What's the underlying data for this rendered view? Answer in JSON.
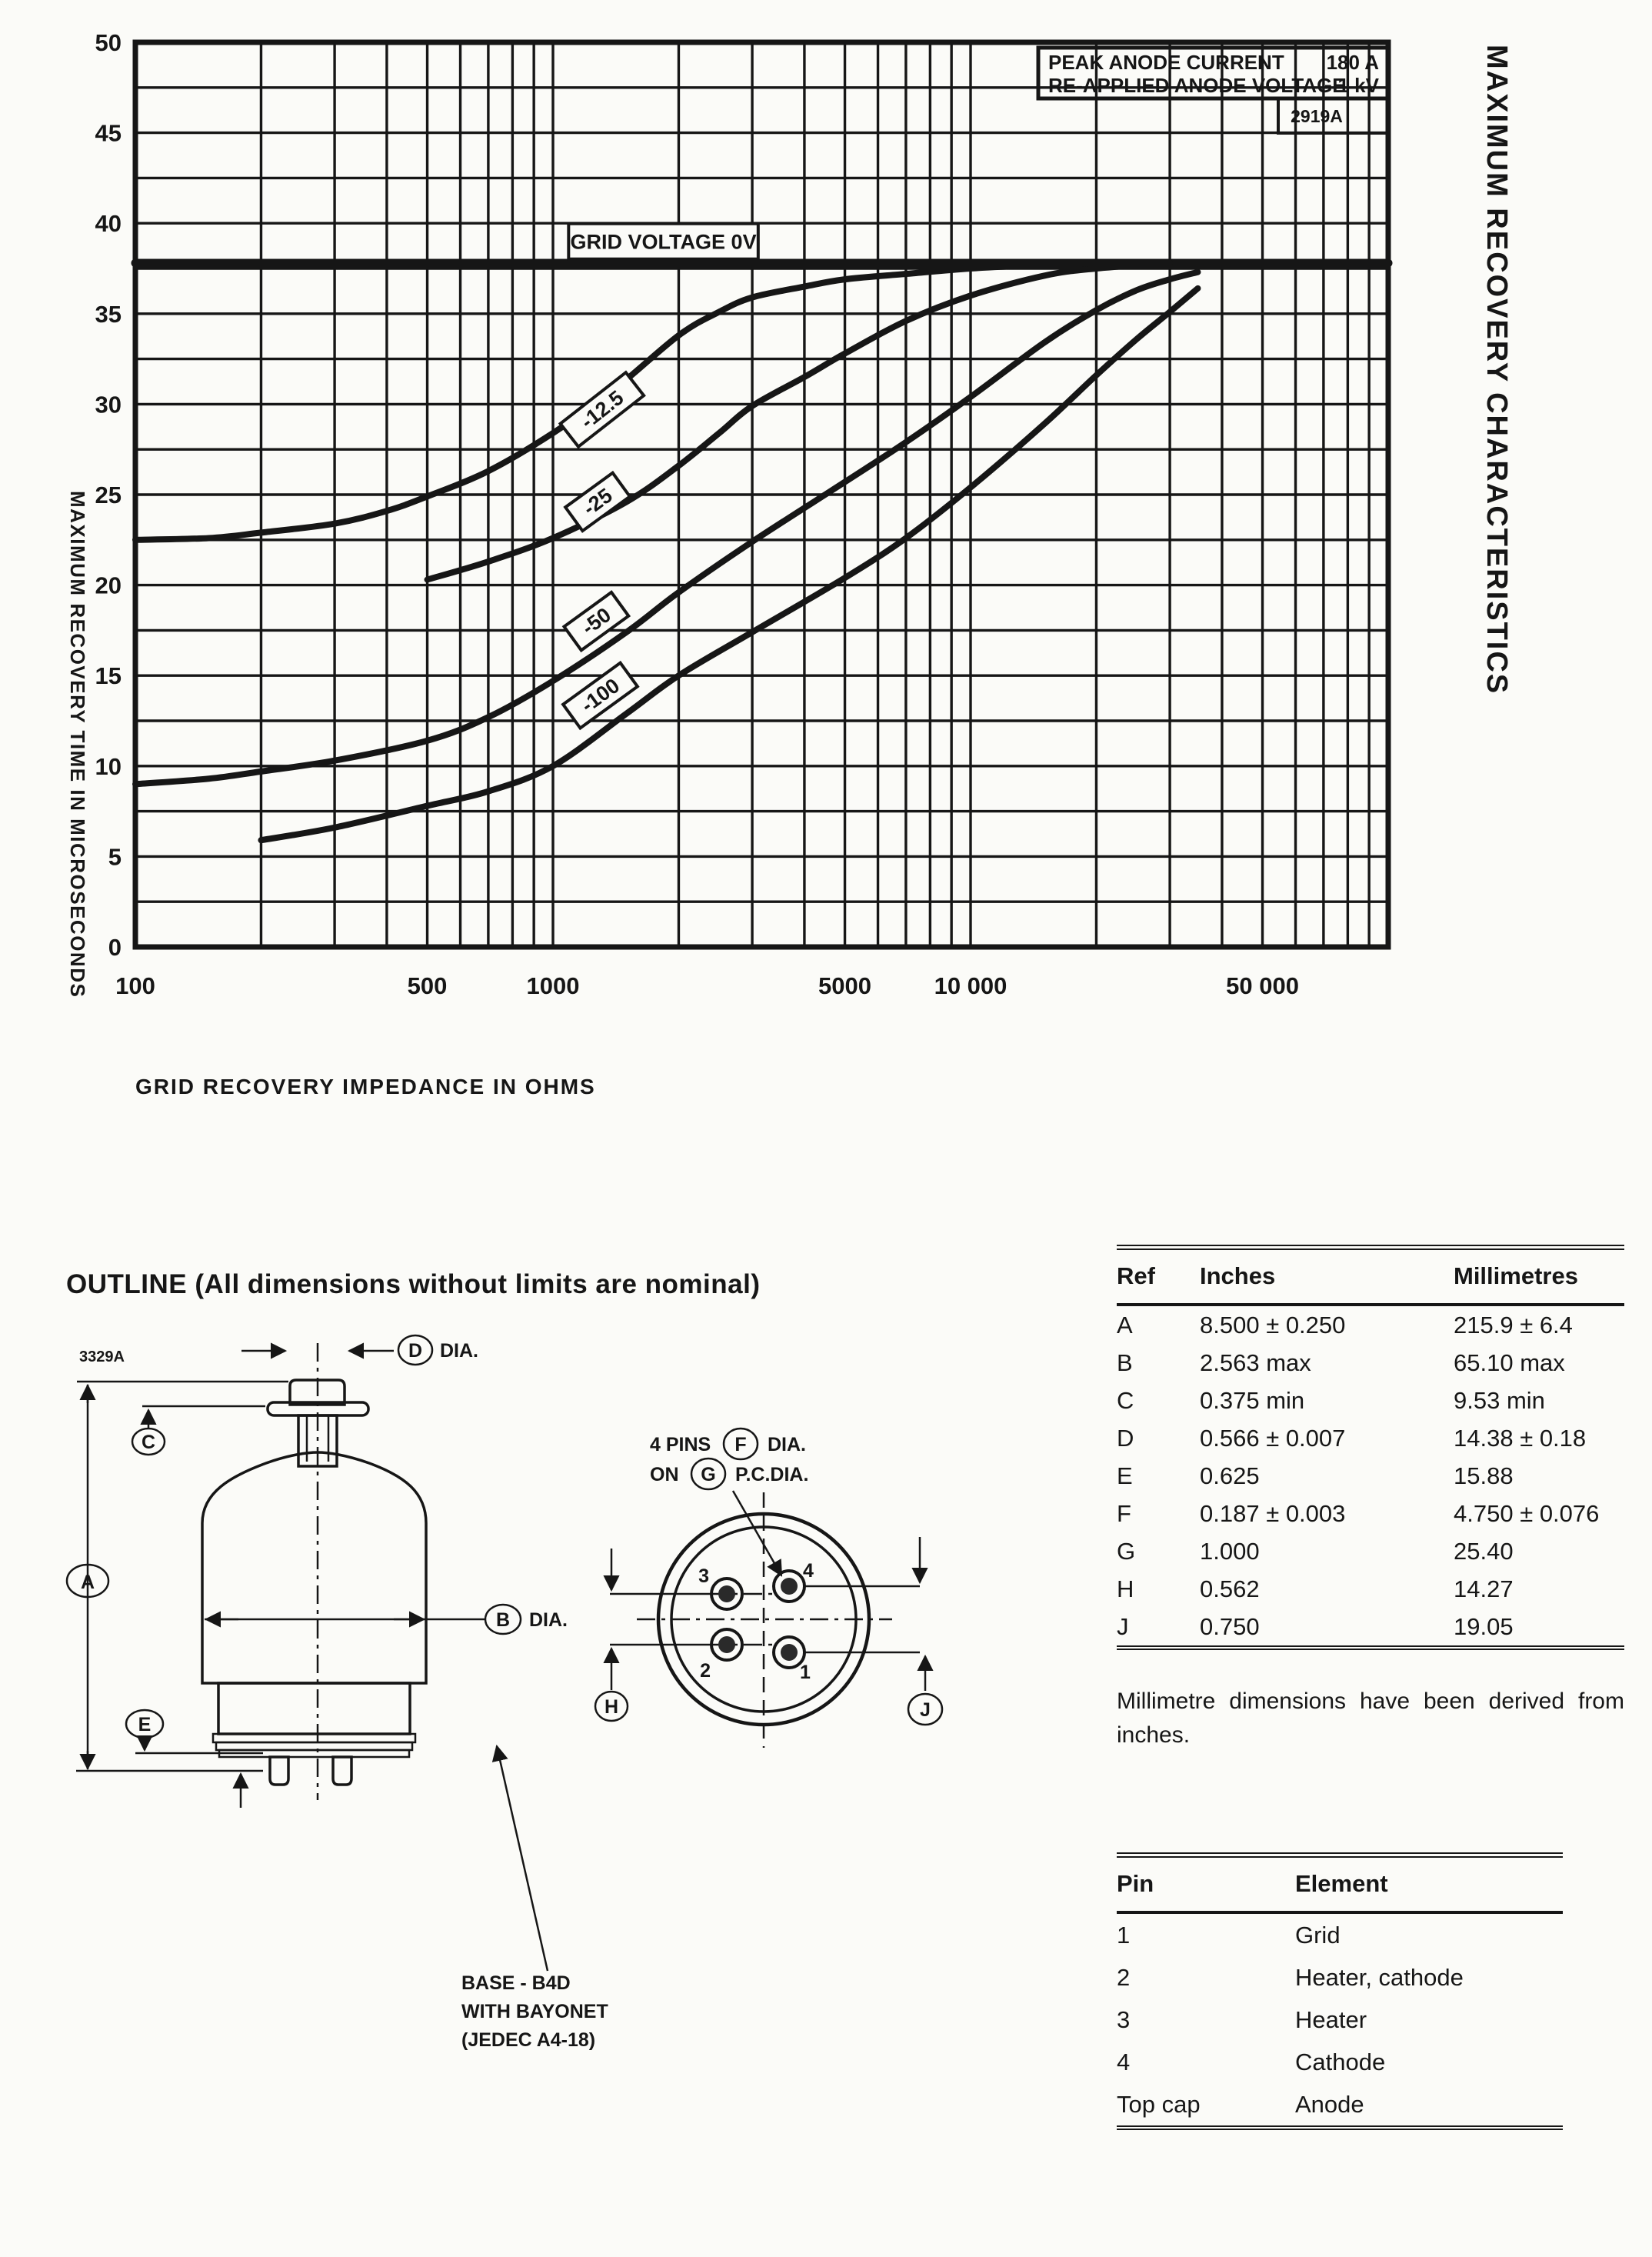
{
  "chart_data": {
    "type": "line",
    "title": "MAXIMUM RECOVERY CHARACTERISTICS",
    "xlabel": "GRID RECOVERY IMPEDANCE IN OHMS",
    "ylabel": "MAXIMUM RECOVERY TIME IN MICROSECONDS",
    "x_scale": "log",
    "xlim": [
      100,
      100000
    ],
    "ylim": [
      0,
      50
    ],
    "y_tick_step": 5,
    "y_grid_step": 2.5,
    "grid": "on",
    "x_ticks": [
      {
        "value": 100,
        "label": "100"
      },
      {
        "value": 500,
        "label": "500"
      },
      {
        "value": 1000,
        "label": "1000"
      },
      {
        "value": 5000,
        "label": "5000"
      },
      {
        "value": 10000,
        "label": "10 000"
      },
      {
        "value": 50000,
        "label": "50 000"
      }
    ],
    "conditions": [
      {
        "label": "PEAK ANODE CURRENT",
        "value": "180 A"
      },
      {
        "label": "RE-APPLIED ANODE VOLTAGE",
        "value": "1 kV"
      }
    ],
    "figure_code": "2919A",
    "series": [
      {
        "name": "0V",
        "grid_voltage": 0,
        "width": 11,
        "points": [
          [
            100,
            37.8
          ],
          [
            100000,
            37.8
          ]
        ]
      },
      {
        "name": "-12.5",
        "grid_voltage": -12.5,
        "width": 8,
        "points": [
          [
            100,
            22.5
          ],
          [
            150,
            22.6
          ],
          [
            200,
            22.9
          ],
          [
            300,
            23.4
          ],
          [
            400,
            24.1
          ],
          [
            500,
            24.9
          ],
          [
            700,
            26.3
          ],
          [
            1000,
            28.4
          ],
          [
            1400,
            30.8
          ],
          [
            2000,
            33.8
          ],
          [
            2500,
            35.1
          ],
          [
            3000,
            35.9
          ],
          [
            4000,
            36.5
          ],
          [
            5000,
            36.9
          ],
          [
            7000,
            37.2
          ],
          [
            10000,
            37.5
          ],
          [
            15000,
            37.7
          ],
          [
            20000,
            37.8
          ],
          [
            30000,
            37.8
          ]
        ]
      },
      {
        "name": "-25",
        "grid_voltage": -25,
        "width": 8,
        "points": [
          [
            500,
            20.3
          ],
          [
            700,
            21.3
          ],
          [
            1000,
            22.6
          ],
          [
            1500,
            24.6
          ],
          [
            2000,
            26.6
          ],
          [
            2500,
            28.4
          ],
          [
            3000,
            29.9
          ],
          [
            4000,
            31.5
          ],
          [
            5000,
            32.8
          ],
          [
            7000,
            34.6
          ],
          [
            10000,
            36.0
          ],
          [
            15000,
            37.1
          ],
          [
            20000,
            37.5
          ],
          [
            30000,
            37.8
          ]
        ]
      },
      {
        "name": "-50",
        "grid_voltage": -50,
        "width": 8,
        "points": [
          [
            100,
            9.0
          ],
          [
            150,
            9.3
          ],
          [
            200,
            9.7
          ],
          [
            300,
            10.3
          ],
          [
            500,
            11.4
          ],
          [
            700,
            12.7
          ],
          [
            1000,
            14.7
          ],
          [
            1500,
            17.4
          ],
          [
            2000,
            19.6
          ],
          [
            3000,
            22.4
          ],
          [
            5000,
            25.7
          ],
          [
            7000,
            27.9
          ],
          [
            10000,
            30.4
          ],
          [
            15000,
            33.4
          ],
          [
            20000,
            35.2
          ],
          [
            25000,
            36.3
          ],
          [
            30000,
            36.9
          ],
          [
            35000,
            37.3
          ]
        ]
      },
      {
        "name": "-100",
        "grid_voltage": -100,
        "width": 8,
        "points": [
          [
            200,
            5.9
          ],
          [
            300,
            6.6
          ],
          [
            500,
            7.8
          ],
          [
            700,
            8.6
          ],
          [
            1000,
            10.0
          ],
          [
            1500,
            12.9
          ],
          [
            2000,
            15.0
          ],
          [
            3000,
            17.4
          ],
          [
            5000,
            20.4
          ],
          [
            7000,
            22.6
          ],
          [
            10000,
            25.4
          ],
          [
            15000,
            28.9
          ],
          [
            20000,
            31.6
          ],
          [
            25000,
            33.6
          ],
          [
            30000,
            35.1
          ],
          [
            35000,
            36.4
          ]
        ]
      }
    ],
    "curve_labels": [
      {
        "text": "-12.5",
        "x": 1311,
        "y": 29.7,
        "rot": -38
      },
      {
        "text": "-25",
        "x": 1279,
        "y": 24.6,
        "rot": -36
      },
      {
        "text": "-50",
        "x": 1270,
        "y": 18.0,
        "rot": -36
      },
      {
        "text": "-100",
        "x": 1298,
        "y": 13.9,
        "rot": -36
      }
    ],
    "annotations": [
      {
        "text": "GRID VOLTAGE 0V",
        "x": 1090,
        "x2": 3100,
        "y": 39.0
      }
    ],
    "legend_position": "top-right"
  },
  "outline": {
    "heading": "OUTLINE (All dimensions without limits are nominal)",
    "drawing_code": "3329A",
    "dia_label": "DIA.",
    "callouts": {
      "A": "A",
      "B": "B",
      "C": "C",
      "D": "D",
      "E": "E",
      "F": "F",
      "G": "G",
      "H": "H",
      "J": "J"
    },
    "pins_note": {
      "line1_prefix": "4 PINS",
      "line1_suffix": "DIA.",
      "line2_prefix": "ON",
      "line2_suffix": "P.C.DIA."
    },
    "pin_numbers": {
      "p1": "1",
      "p2": "2",
      "p3": "3",
      "p4": "4"
    },
    "base_note": [
      "BASE - B4D",
      "WITH BAYONET",
      "(JEDEC A4-18)"
    ]
  },
  "dimensions_table": {
    "headers": [
      "Ref",
      "Inches",
      "Millimetres"
    ],
    "rows": [
      [
        "A",
        "8.500 ± 0.250",
        "215.9 ± 6.4"
      ],
      [
        "B",
        "2.563 max",
        "65.10 max"
      ],
      [
        "C",
        "0.375 min",
        "9.53 min"
      ],
      [
        "D",
        "0.566 ± 0.007",
        "14.38 ± 0.18"
      ],
      [
        "E",
        "0.625",
        "15.88"
      ],
      [
        "F",
        "0.187 ± 0.003",
        "4.750 ± 0.076"
      ],
      [
        "G",
        "1.000",
        "25.40"
      ],
      [
        "H",
        "0.562",
        "14.27"
      ],
      [
        "J",
        "0.750",
        "19.05"
      ]
    ]
  },
  "mm_note": "Millimetre dimensions have been derived from inches.",
  "pin_table": {
    "headers": [
      "Pin",
      "Element"
    ],
    "rows": [
      [
        "1",
        "Grid"
      ],
      [
        "2",
        "Heater, cathode"
      ],
      [
        "3",
        "Heater"
      ],
      [
        "4",
        "Cathode"
      ],
      [
        "Top cap",
        "Anode"
      ]
    ]
  }
}
